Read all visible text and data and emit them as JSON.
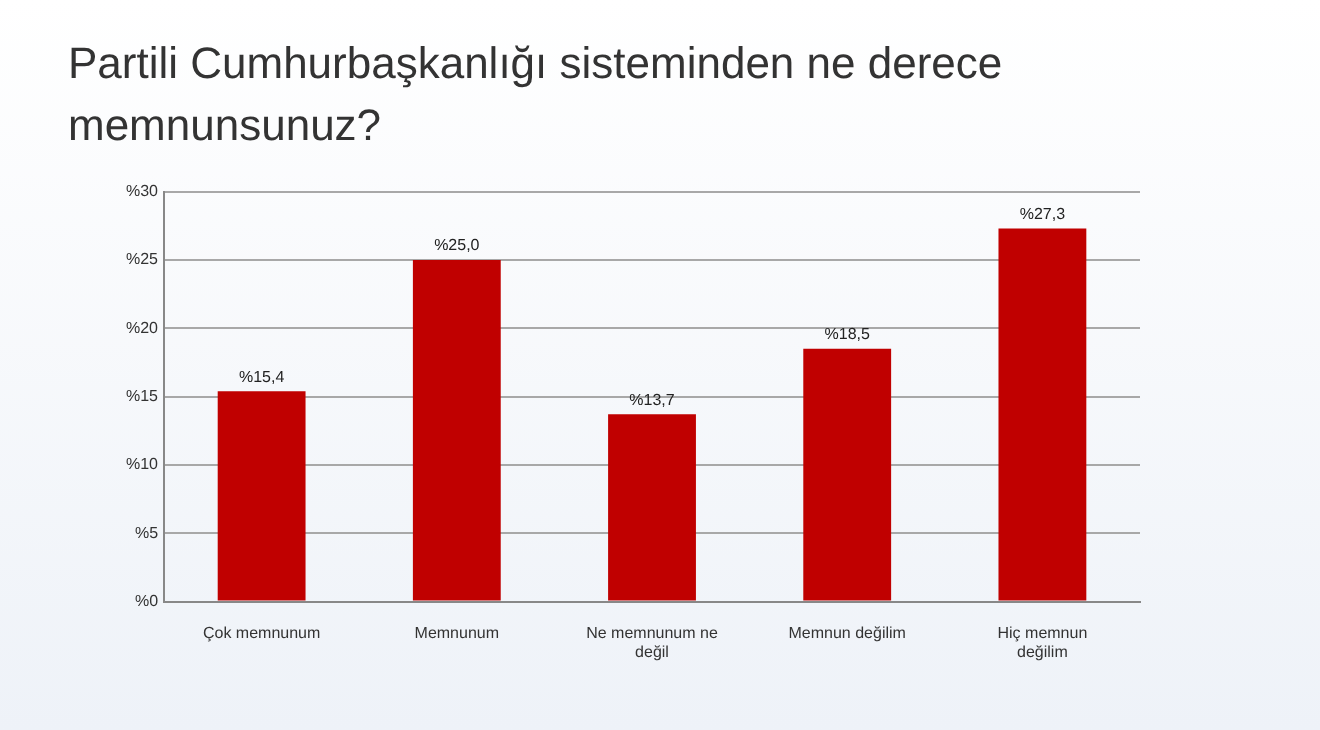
{
  "chart_data": {
    "type": "bar",
    "title": "Partili Cumhurbaşkanlığı sisteminden ne derece memnunsunuz?",
    "categories": [
      "Çok memnunum",
      "Memnunum",
      "Ne memnunum ne değil",
      "Memnun değilim",
      "Hiç memnun değilim"
    ],
    "values": [
      15.4,
      25.0,
      13.7,
      18.5,
      27.3
    ],
    "value_labels": [
      "%15,4",
      "%25,0",
      "%13,7",
      "%18,5",
      "%27,3"
    ],
    "color": "#c00000",
    "ylim": [
      0,
      30
    ],
    "yticks": [
      {
        "value": 0,
        "label": "%0"
      },
      {
        "value": 5,
        "label": "%5"
      },
      {
        "value": 10,
        "label": "%10"
      },
      {
        "value": 15,
        "label": "%15"
      },
      {
        "value": 20,
        "label": "%20"
      },
      {
        "value": 25,
        "label": "%25"
      },
      {
        "value": 30,
        "label": "%30"
      }
    ],
    "grid": "y"
  }
}
